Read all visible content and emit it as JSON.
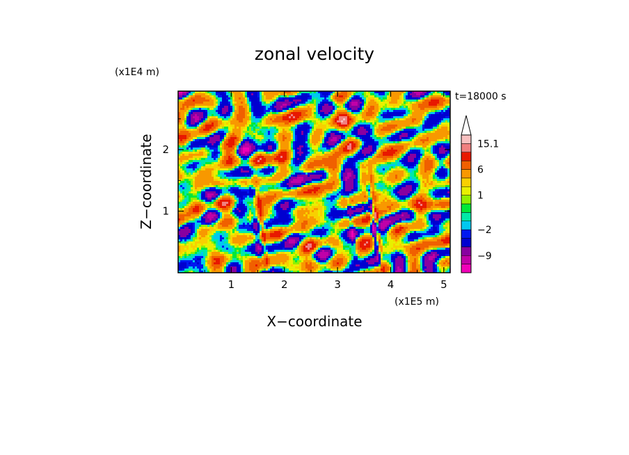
{
  "chart_data": {
    "type": "heatmap",
    "title": "zonal velocity",
    "xlabel": "X−coordinate",
    "ylabel": "Z−coordinate",
    "x_unit": "(x1E5 m)",
    "y_unit": "(x1E4 m)",
    "time_label": "t=18000 s",
    "xlim": [
      0,
      5.12
    ],
    "ylim": [
      0,
      2.95
    ],
    "x_ticks": [
      1,
      2,
      3,
      4,
      5
    ],
    "y_ticks": [
      1,
      2
    ],
    "grid": false,
    "colorbar": {
      "placement": "right",
      "levels": [
        -15,
        -12,
        -9,
        -6,
        -3,
        -2,
        -1,
        0,
        0.5,
        1,
        2,
        3,
        6,
        9,
        12,
        15.1
      ],
      "colors": [
        "#f000b8",
        "#c000a8",
        "#8800a0",
        "#0000d0",
        "#0018f0",
        "#00c8f0",
        "#00e8a8",
        "#00e838",
        "#90f000",
        "#e8f000",
        "#f8d000",
        "#f89800",
        "#f06000",
        "#e81800",
        "#f08080",
        "#f8c0c0"
      ],
      "labels": [
        {
          "level": 15.1,
          "text": "15.1"
        },
        {
          "level": 6,
          "text": "6"
        },
        {
          "level": 1,
          "text": "1"
        },
        {
          "level": -2,
          "text": "−2"
        },
        {
          "level": -9,
          "text": "−9"
        }
      ],
      "extend": "max"
    },
    "field_description_colors": {
      "background_mean": 0.9,
      "strong_negative": -8,
      "strong_positive": 8
    }
  }
}
